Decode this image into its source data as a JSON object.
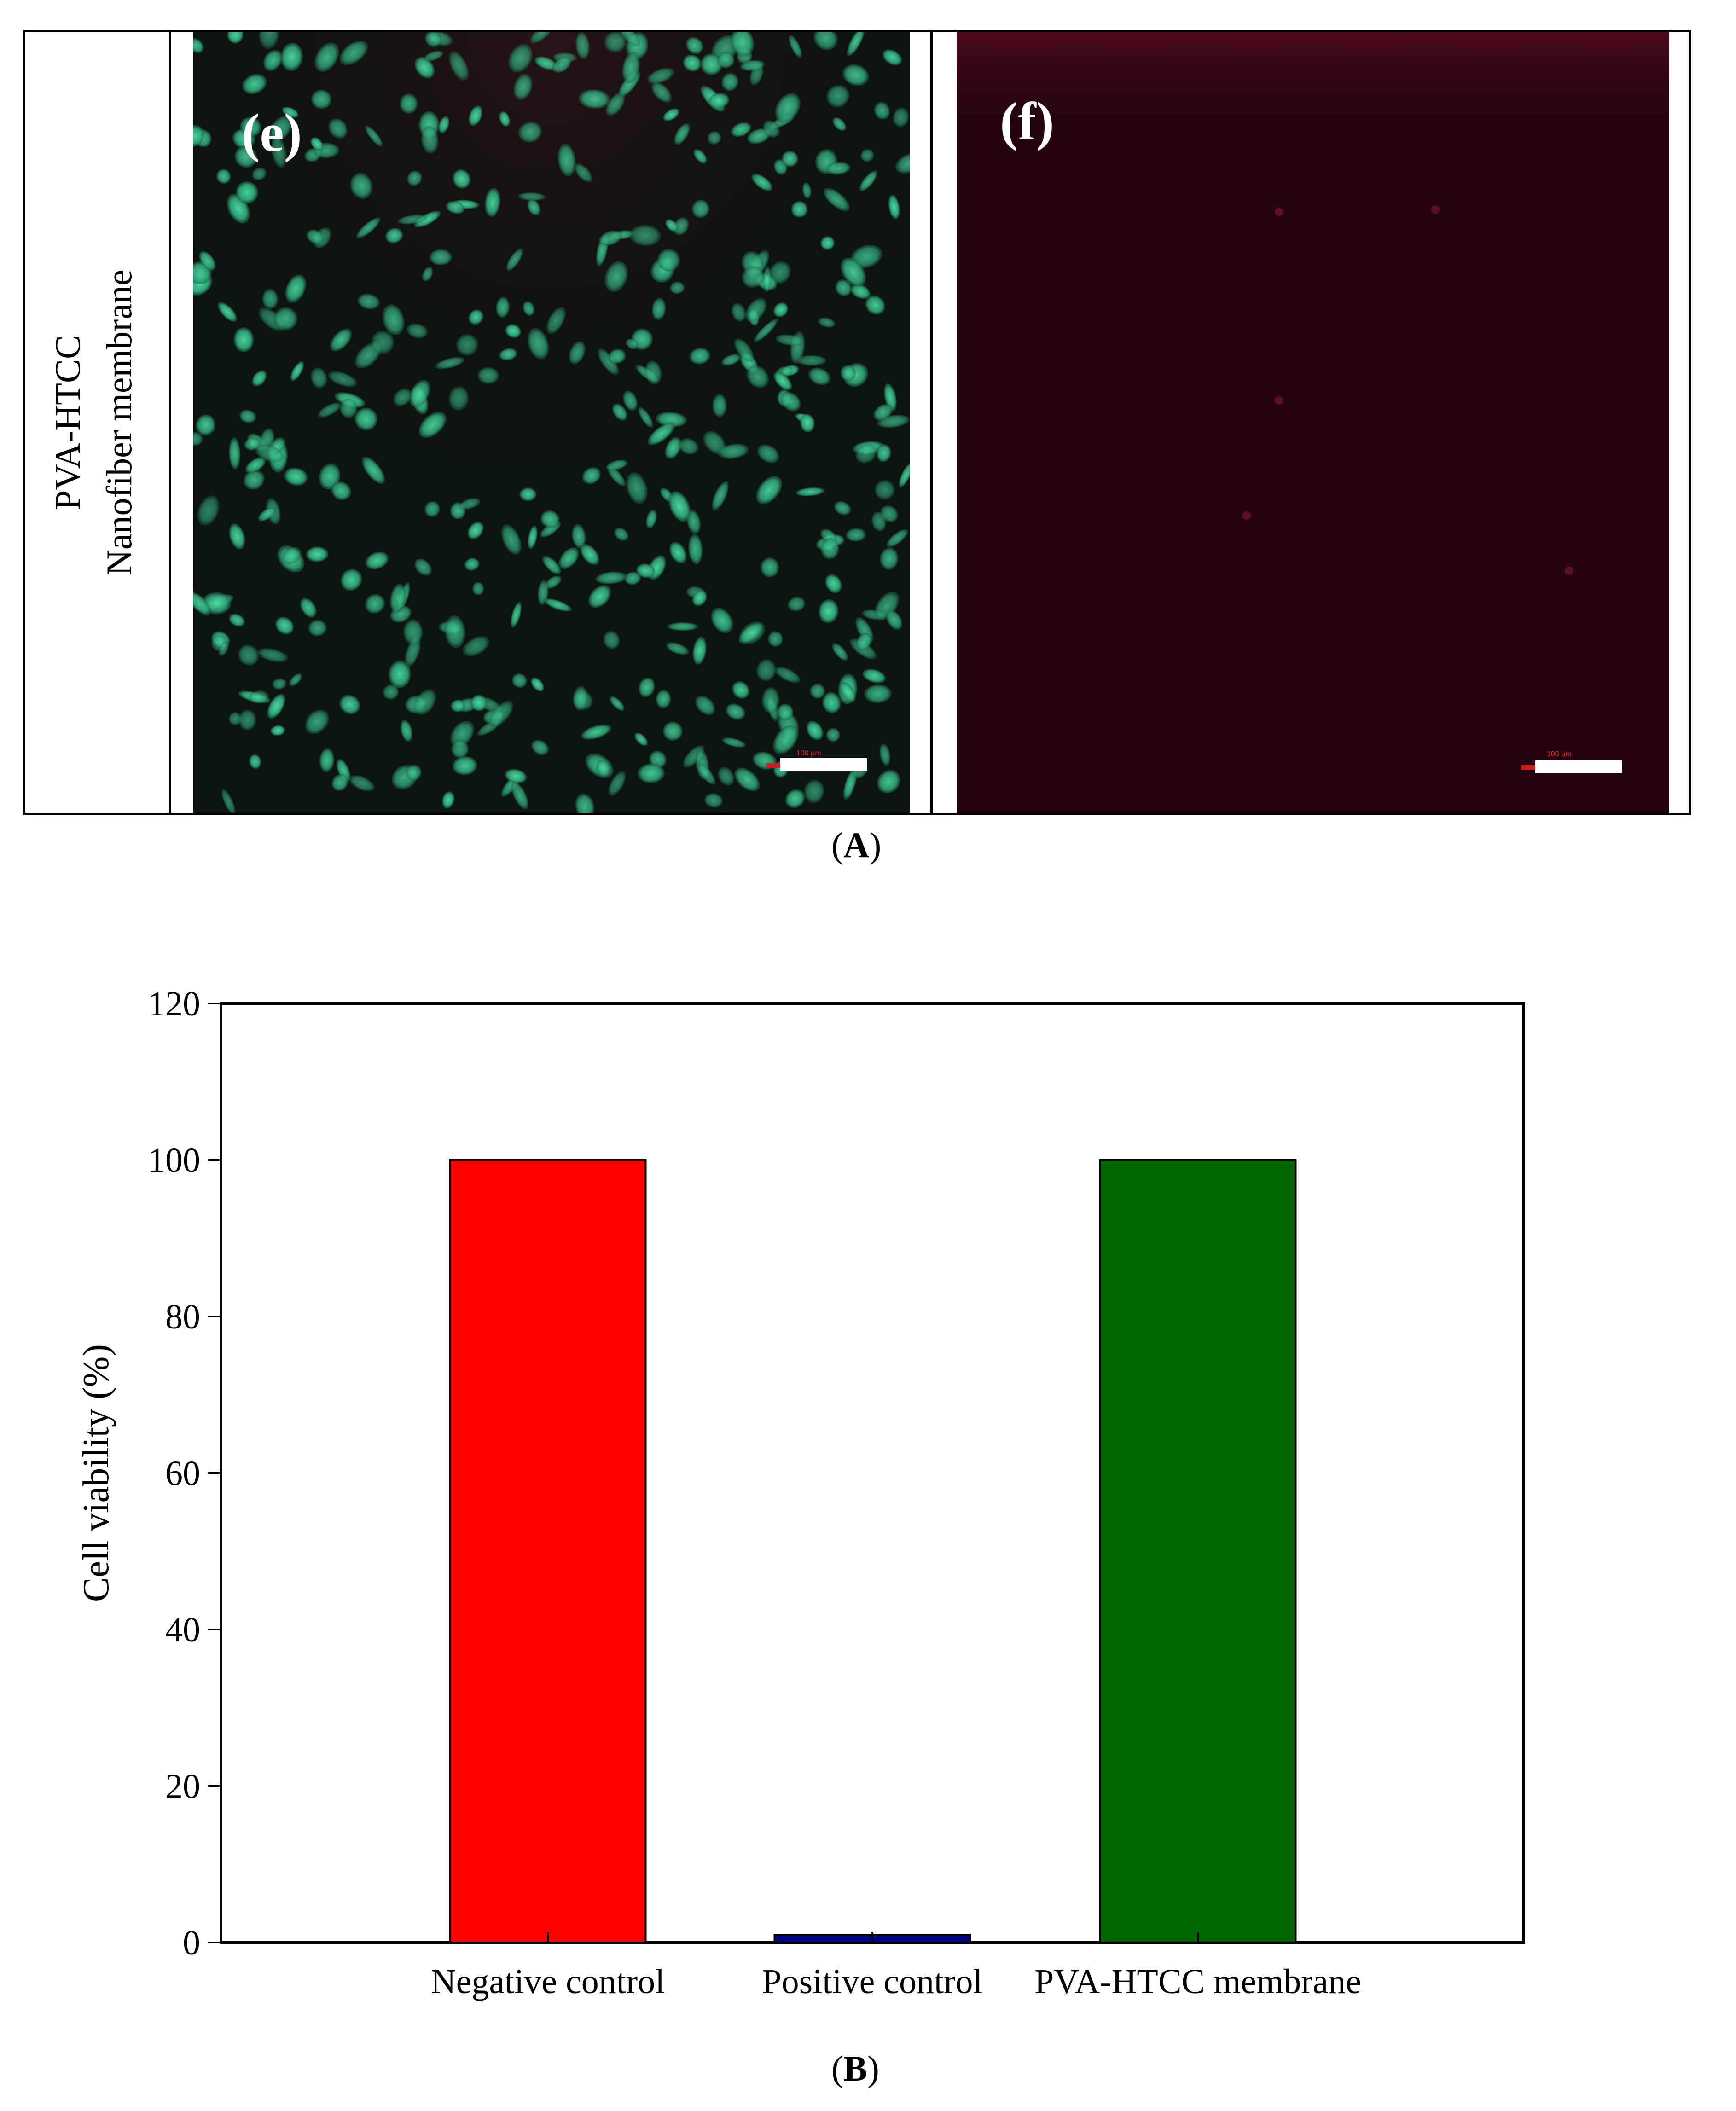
{
  "panel_a": {
    "row_label_line1": "PVA-HTCC",
    "row_label_line2": "Nanofiber membrane",
    "image_e_label": "(e)",
    "image_f_label": "(f)",
    "scale_bar_e": "100 μm",
    "scale_bar_f": "100 μm",
    "caption_open": "(",
    "caption_letter": "A",
    "caption_close": ")",
    "colors": {
      "live_stain": "#3cc68c",
      "dead_background": "#260511"
    }
  },
  "panel_b": {
    "caption_open": "(",
    "caption_letter": "B",
    "caption_close": ")"
  },
  "chart_data": {
    "type": "bar",
    "title": "",
    "xlabel": "",
    "ylabel": "Cell viability (%)",
    "categories": [
      "Negative control",
      "Positive control",
      "PVA-HTCC membrane"
    ],
    "values": [
      100,
      1,
      100
    ],
    "colors": [
      "#ff0000",
      "#00008b",
      "#006400"
    ],
    "ylim": [
      0,
      120
    ],
    "yticks": [
      0,
      20,
      40,
      60,
      80,
      100,
      120
    ],
    "grid": false,
    "legend": "none"
  }
}
